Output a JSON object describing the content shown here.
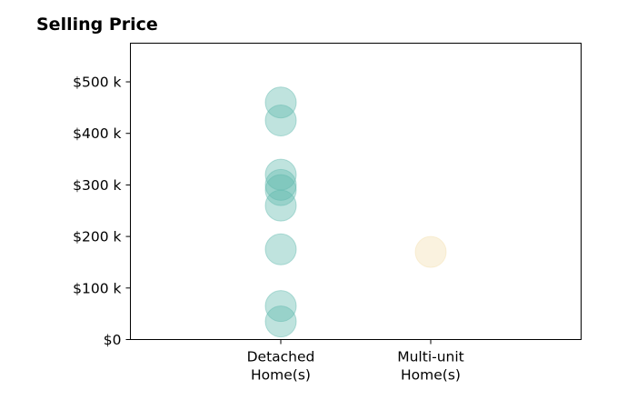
{
  "chart_data": {
    "type": "scatter",
    "title": "Selling Price",
    "xlabel": "",
    "ylabel": "",
    "categories": [
      [
        "Detached",
        "Home(s)"
      ],
      [
        "Multi-unit",
        "Home(s)"
      ]
    ],
    "ylim": [
      0,
      575000
    ],
    "yticks": [
      {
        "value": 0,
        "label": "$0"
      },
      {
        "value": 100000,
        "label": "$100 k"
      },
      {
        "value": 200000,
        "label": "$200 k"
      },
      {
        "value": 300000,
        "label": "$300 k"
      },
      {
        "value": 400000,
        "label": "$400 k"
      },
      {
        "value": 500000,
        "label": "$500 k"
      }
    ],
    "series": [
      {
        "category": 0,
        "color": "#5fb9ad",
        "values": [
          460000,
          425000,
          320000,
          300000,
          290000,
          260000,
          175000,
          65000,
          35000
        ]
      },
      {
        "category": 1,
        "color": "#f3dfb0",
        "values": [
          170000
        ]
      }
    ],
    "grid": false,
    "legend": "none"
  }
}
